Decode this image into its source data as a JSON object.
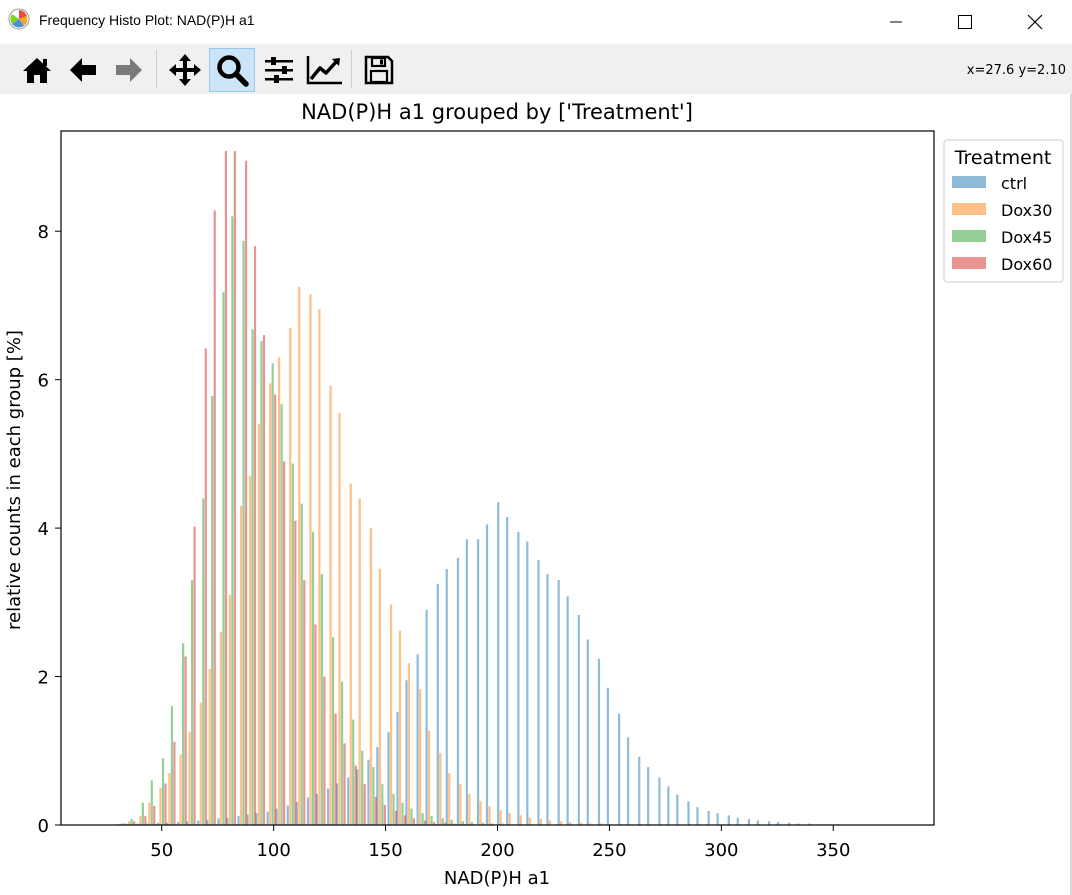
{
  "window": {
    "title": "Frequency Histo Plot: NAD(P)H a1"
  },
  "toolbar": {
    "buttons": [
      {
        "name": "home-icon"
      },
      {
        "name": "back-arrow-icon"
      },
      {
        "name": "forward-arrow-icon"
      },
      {
        "name": "pan-icon"
      },
      {
        "name": "zoom-icon",
        "active": true
      },
      {
        "name": "configure-subplots-icon"
      },
      {
        "name": "edit-axis-icon"
      },
      {
        "name": "save-icon"
      }
    ],
    "coords": "x=27.6 y=2.10"
  },
  "chart_data": {
    "type": "bar",
    "title": "NAD(P)H a1 grouped by ['Treatment']",
    "xlabel": "NAD(P)H a1",
    "ylabel": "relative counts in each group [%]",
    "xlim": [
      5,
      395
    ],
    "ylim": [
      0,
      9.35
    ],
    "xticks": [
      50,
      100,
      150,
      200,
      250,
      300,
      350
    ],
    "yticks": [
      0,
      2,
      4,
      6,
      8
    ],
    "grid": false,
    "legend": {
      "title": "Treatment",
      "position": "upper right outside"
    },
    "series": [
      {
        "name": "ctrl",
        "color": "#1f77b4",
        "x": [
          32,
          36,
          41,
          45,
          50,
          54,
          59,
          63,
          68,
          72,
          77,
          81,
          86,
          90,
          94,
          99,
          103,
          108,
          112,
          117,
          121,
          126,
          130,
          135,
          139,
          144,
          148,
          153,
          157,
          161,
          166,
          170,
          175,
          179,
          184,
          188,
          193,
          197,
          202,
          206,
          211,
          215,
          220,
          224,
          229,
          233,
          238,
          242,
          247,
          251,
          256,
          260,
          265,
          269,
          274,
          278,
          282,
          287,
          291,
          296,
          300,
          305,
          309,
          314,
          318,
          323,
          327,
          332,
          336,
          341,
          345,
          350,
          354
        ],
        "values": [
          0.01,
          0.01,
          0.02,
          0.02,
          0.03,
          0.03,
          0.04,
          0.05,
          0.06,
          0.07,
          0.09,
          0.1,
          0.12,
          0.14,
          0.16,
          0.18,
          0.22,
          0.26,
          0.31,
          0.37,
          0.42,
          0.49,
          0.56,
          0.64,
          0.75,
          0.88,
          1.05,
          1.25,
          1.52,
          1.95,
          2.3,
          2.9,
          3.25,
          3.45,
          3.6,
          3.85,
          3.85,
          4.05,
          4.35,
          4.15,
          3.95,
          3.82,
          3.57,
          3.38,
          3.3,
          3.08,
          2.83,
          2.5,
          2.24,
          1.85,
          1.5,
          1.18,
          0.92,
          0.78,
          0.64,
          0.52,
          0.41,
          0.32,
          0.24,
          0.19,
          0.16,
          0.13,
          0.1,
          0.08,
          0.06,
          0.05,
          0.04,
          0.03,
          0.02,
          0.02,
          0.01,
          0.01,
          0.01
        ]
      },
      {
        "name": "Dox30",
        "color": "#ff7f0e",
        "x": [
          32,
          36,
          41,
          45,
          50,
          54,
          59,
          63,
          68,
          72,
          77,
          81,
          86,
          90,
          94,
          99,
          103,
          108,
          112,
          117,
          121,
          126,
          130,
          135,
          139,
          144,
          148,
          153,
          157,
          161,
          166,
          170,
          175,
          179,
          184,
          188,
          193,
          197,
          202,
          206,
          211,
          215,
          220,
          224,
          229,
          233,
          238,
          242,
          247,
          251,
          256,
          260,
          265,
          269,
          274,
          278,
          282,
          287,
          291,
          296,
          300,
          305,
          309,
          314,
          318,
          323,
          327,
          332,
          336,
          341,
          345,
          350,
          354
        ],
        "values": [
          0.02,
          0.05,
          0.12,
          0.3,
          0.5,
          0.7,
          0.95,
          1.25,
          1.65,
          2.1,
          2.6,
          3.1,
          4.3,
          4.7,
          5.4,
          5.95,
          6.3,
          6.7,
          7.25,
          7.15,
          6.95,
          5.92,
          5.55,
          4.6,
          4.4,
          4.0,
          3.45,
          2.97,
          2.62,
          2.18,
          1.83,
          1.27,
          0.97,
          0.7,
          0.55,
          0.42,
          0.32,
          0.25,
          0.2,
          0.16,
          0.13,
          0.1,
          0.08,
          0.06,
          0.05,
          0.04,
          0.03,
          0.02,
          0.02,
          0.01,
          0.01,
          0.01,
          0.01,
          0,
          0,
          0,
          0,
          0,
          0,
          0,
          0,
          0,
          0,
          0,
          0,
          0,
          0,
          0,
          0,
          0,
          0,
          0,
          0
        ]
      },
      {
        "name": "Dox45",
        "color": "#2ca02c",
        "x": [
          32,
          36,
          41,
          45,
          50,
          54,
          59,
          63,
          68,
          72,
          77,
          81,
          86,
          90,
          94,
          99,
          103,
          108,
          112,
          117,
          121,
          126,
          130,
          135,
          139,
          144,
          148,
          153,
          157,
          161,
          166,
          170,
          175,
          179,
          184,
          188,
          193,
          197,
          202,
          206,
          211,
          215,
          220,
          224,
          229,
          233,
          238,
          242,
          247,
          251,
          256,
          260,
          265,
          269,
          274,
          278,
          282,
          287,
          291,
          296,
          300,
          305,
          309,
          314,
          318,
          323,
          327,
          332,
          336,
          341,
          345,
          350,
          354
        ],
        "values": [
          0.02,
          0.08,
          0.3,
          0.6,
          0.9,
          1.6,
          2.45,
          3.3,
          4.4,
          5.78,
          7.18,
          8.2,
          7.87,
          6.68,
          6.52,
          6.22,
          5.67,
          4.87,
          4.33,
          3.95,
          3.38,
          2.53,
          1.93,
          1.42,
          1.0,
          0.78,
          0.55,
          0.42,
          0.3,
          0.22,
          0.16,
          0.12,
          0.09,
          0.07,
          0.05,
          0.04,
          0.03,
          0.02,
          0.02,
          0.01,
          0.01,
          0.01,
          0,
          0,
          0,
          0,
          0,
          0,
          0,
          0,
          0,
          0,
          0,
          0,
          0,
          0,
          0,
          0,
          0,
          0,
          0,
          0,
          0,
          0,
          0,
          0,
          0,
          0,
          0,
          0,
          0,
          0,
          0
        ]
      },
      {
        "name": "Dox60",
        "color": "#d62728",
        "x": [
          32,
          36,
          41,
          45,
          50,
          54,
          59,
          63,
          68,
          72,
          77,
          81,
          86,
          90,
          94,
          99,
          103,
          108,
          112,
          117,
          121,
          126,
          130,
          135,
          139,
          144,
          148,
          153,
          157,
          161,
          166,
          170,
          175,
          179,
          184,
          188,
          193,
          197,
          202,
          206,
          211,
          215,
          220,
          224,
          229,
          233,
          238,
          242,
          247,
          251,
          256,
          260,
          265,
          269,
          274,
          278,
          282,
          287,
          291,
          296,
          300,
          305,
          309,
          314,
          318,
          323,
          327,
          332,
          336,
          341,
          345,
          350,
          354
        ],
        "values": [
          0.02,
          0.05,
          0.12,
          0.26,
          0.56,
          1.12,
          2.27,
          4.02,
          6.42,
          8.28,
          9.08,
          9.08,
          8.95,
          7.8,
          6.6,
          5.8,
          4.9,
          4.1,
          3.3,
          2.7,
          2.0,
          1.5,
          1.1,
          0.8,
          0.55,
          0.38,
          0.27,
          0.19,
          0.13,
          0.09,
          0.06,
          0.04,
          0.03,
          0.02,
          0.01,
          0.01,
          0,
          0,
          0,
          0,
          0,
          0,
          0,
          0,
          0,
          0,
          0,
          0,
          0,
          0,
          0,
          0,
          0,
          0,
          0,
          0,
          0,
          0,
          0,
          0,
          0,
          0,
          0,
          0,
          0,
          0,
          0,
          0,
          0,
          0,
          0,
          0,
          0
        ]
      }
    ]
  }
}
